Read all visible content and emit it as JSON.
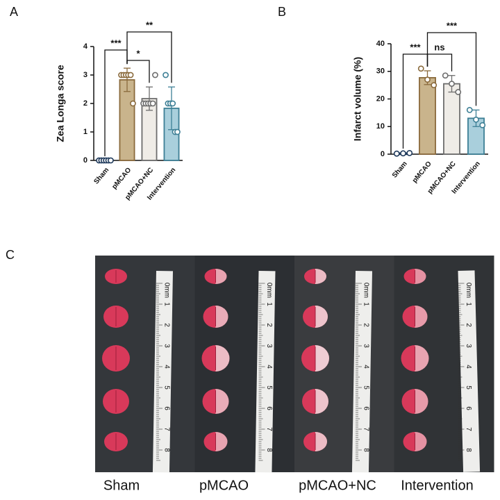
{
  "chart_data": [
    {
      "type": "bar",
      "panel": "A",
      "y_label": "Zea Longa score",
      "categories": [
        "Sham",
        "pMCAO",
        "pMCAO+NC",
        "Intervention"
      ],
      "values": [
        0,
        2.83,
        2.17,
        1.83
      ],
      "errors": [
        0,
        0.41,
        0.41,
        0.75
      ],
      "points": [
        [
          0,
          0,
          0,
          0,
          0,
          0
        ],
        [
          3,
          3,
          3,
          3,
          3,
          2
        ],
        [
          2,
          2,
          2,
          2,
          2,
          3
        ],
        [
          3,
          2,
          2,
          2,
          1,
          1
        ]
      ],
      "colors": [
        "#1f3a5c",
        "#c9b48c",
        "#efece7",
        "#a9cfdc"
      ],
      "edge_colors": [
        "#1f3a5c",
        "#8a6a3c",
        "#6d6d6d",
        "#3d7f95"
      ],
      "ylim": [
        0,
        4
      ],
      "yticks": [
        0,
        1,
        2,
        3,
        4
      ],
      "annotations": [
        "***",
        "*",
        "**"
      ]
    },
    {
      "type": "bar",
      "panel": "B",
      "y_label": "Infarct volume (%)",
      "categories": [
        "Sham",
        "pMCAO",
        "pMCAO+NC",
        "Intervention"
      ],
      "values": [
        0.3,
        27.7,
        25.5,
        13
      ],
      "errors": [
        0.2,
        2.5,
        3,
        3
      ],
      "points": [
        [
          0.2,
          0.3,
          0.4
        ],
        [
          31,
          27,
          25
        ],
        [
          28.5,
          25.5,
          22.5
        ],
        [
          16,
          12.5,
          10.5
        ]
      ],
      "colors": [
        "#1f3a5c",
        "#c9b48c",
        "#efece7",
        "#a9cfdc"
      ],
      "edge_colors": [
        "#1f3a5c",
        "#8a6a3c",
        "#6d6d6d",
        "#3d7f95"
      ],
      "ylim": [
        0,
        40
      ],
      "yticks": [
        0,
        10,
        20,
        30,
        40
      ],
      "annotations": [
        "***",
        "ns",
        "***"
      ]
    }
  ],
  "figure_c": {
    "panel": "C",
    "labels": [
      "Sham",
      "pMCAO",
      "pMCAO+NC",
      "Intervention"
    ],
    "ruler_labels": [
      "0mm",
      "1",
      "2",
      "3",
      "4",
      "5",
      "6",
      "7",
      "8"
    ]
  }
}
